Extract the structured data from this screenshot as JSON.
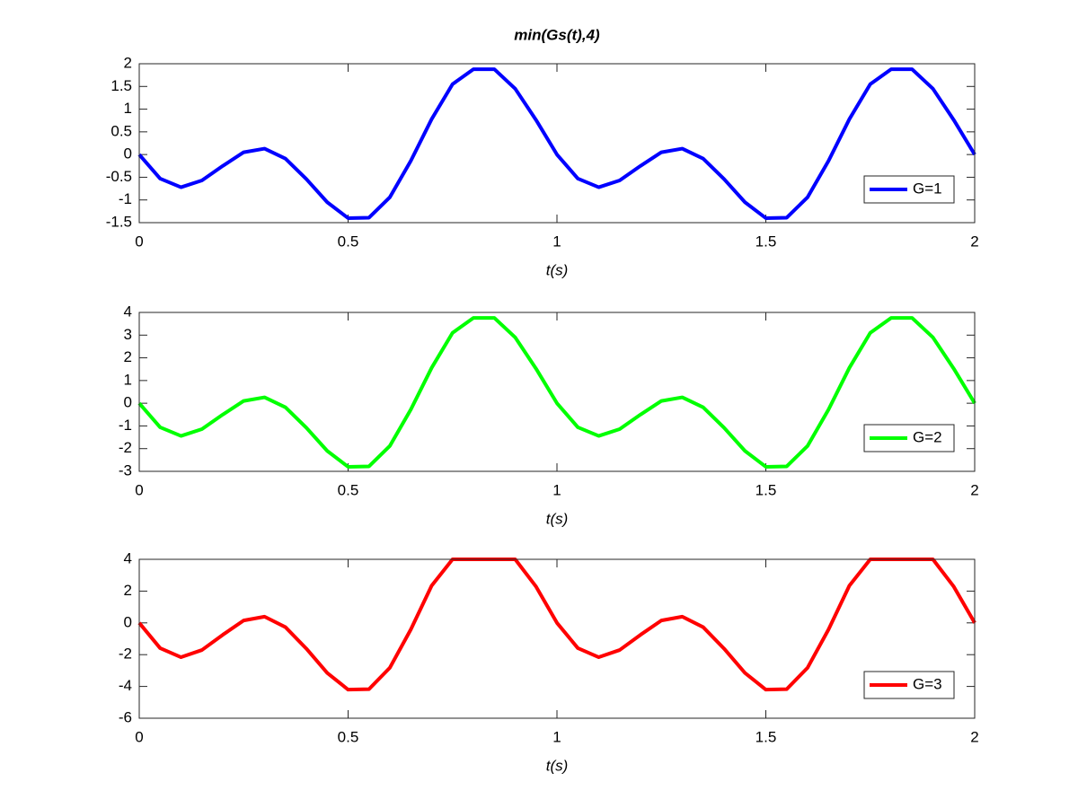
{
  "chart_data": [
    {
      "type": "line",
      "title": "min(Gs(t),4)",
      "xlabel": "t(s)",
      "x": [
        0,
        0.05,
        0.1,
        0.15,
        0.2,
        0.25,
        0.3,
        0.35,
        0.4,
        0.45,
        0.5,
        0.55,
        0.6,
        0.65,
        0.7,
        0.75,
        0.8,
        0.85,
        0.9,
        0.95,
        1,
        1.05,
        1.1,
        1.15,
        1.2,
        1.25,
        1.3,
        1.35,
        1.4,
        1.45,
        1.5,
        1.55,
        1.6,
        1.65,
        1.7,
        1.75,
        1.8,
        1.85,
        1.9,
        1.95,
        2
      ],
      "series": [
        {
          "name": "G=1",
          "color": "#0000ff",
          "values": [
            0,
            -0.53,
            -0.72,
            -0.57,
            -0.25,
            0.05,
            0.13,
            -0.09,
            -0.54,
            -1.05,
            -1.4,
            -1.39,
            -0.94,
            -0.14,
            0.78,
            1.55,
            1.88,
            1.88,
            1.45,
            0.76,
            0,
            -0.53,
            -0.72,
            -0.57,
            -0.25,
            0.05,
            0.13,
            -0.09,
            -0.54,
            -1.05,
            -1.4,
            -1.39,
            -0.94,
            -0.14,
            0.78,
            1.55,
            1.88,
            1.88,
            1.45,
            0.76,
            0
          ]
        }
      ],
      "xlim": [
        0,
        2
      ],
      "xticks": [
        0,
        0.5,
        1,
        1.5,
        2
      ],
      "ylim": [
        -1.5,
        2
      ],
      "yticks": [
        -1.5,
        -1,
        -0.5,
        0,
        0.5,
        1,
        1.5,
        2
      ],
      "legend": "southeast"
    },
    {
      "type": "line",
      "xlabel": "t(s)",
      "x": [
        0,
        0.05,
        0.1,
        0.15,
        0.2,
        0.25,
        0.3,
        0.35,
        0.4,
        0.45,
        0.5,
        0.55,
        0.6,
        0.65,
        0.7,
        0.75,
        0.8,
        0.85,
        0.9,
        0.95,
        1,
        1.05,
        1.1,
        1.15,
        1.2,
        1.25,
        1.3,
        1.35,
        1.4,
        1.45,
        1.5,
        1.55,
        1.6,
        1.65,
        1.7,
        1.75,
        1.8,
        1.85,
        1.9,
        1.95,
        2
      ],
      "series": [
        {
          "name": "G=2",
          "color": "#00ff00",
          "values": [
            0,
            -1.06,
            -1.44,
            -1.14,
            -0.5,
            0.1,
            0.26,
            -0.18,
            -1.08,
            -2.1,
            -2.8,
            -2.78,
            -1.88,
            -0.28,
            1.56,
            3.1,
            3.76,
            3.76,
            2.9,
            1.52,
            0,
            -1.06,
            -1.44,
            -1.14,
            -0.5,
            0.1,
            0.26,
            -0.18,
            -1.08,
            -2.1,
            -2.8,
            -2.78,
            -1.88,
            -0.28,
            1.56,
            3.1,
            3.76,
            3.76,
            2.9,
            1.52,
            0
          ]
        }
      ],
      "xlim": [
        0,
        2
      ],
      "xticks": [
        0,
        0.5,
        1,
        1.5,
        2
      ],
      "ylim": [
        -3,
        4
      ],
      "yticks": [
        -3,
        -2,
        -1,
        0,
        1,
        2,
        3,
        4
      ],
      "legend": "southeast"
    },
    {
      "type": "line",
      "xlabel": "t(s)",
      "x": [
        0,
        0.05,
        0.1,
        0.15,
        0.2,
        0.25,
        0.3,
        0.35,
        0.4,
        0.45,
        0.5,
        0.55,
        0.6,
        0.65,
        0.7,
        0.75,
        0.8,
        0.85,
        0.9,
        0.95,
        1,
        1.05,
        1.1,
        1.15,
        1.2,
        1.25,
        1.3,
        1.35,
        1.4,
        1.45,
        1.5,
        1.55,
        1.6,
        1.65,
        1.7,
        1.75,
        1.8,
        1.85,
        1.9,
        1.95,
        2
      ],
      "series": [
        {
          "name": "G=3",
          "color": "#ff0000",
          "values": [
            0,
            -1.59,
            -2.16,
            -1.71,
            -0.75,
            0.15,
            0.39,
            -0.27,
            -1.62,
            -3.15,
            -4.2,
            -4.17,
            -2.82,
            -0.42,
            2.34,
            4,
            4,
            4,
            4,
            2.28,
            0,
            -1.59,
            -2.16,
            -1.71,
            -0.75,
            0.15,
            0.39,
            -0.27,
            -1.62,
            -3.15,
            -4.2,
            -4.17,
            -2.82,
            -0.42,
            2.34,
            4,
            4,
            4,
            4,
            2.28,
            0
          ]
        }
      ],
      "xlim": [
        0,
        2
      ],
      "xticks": [
        0,
        0.5,
        1,
        1.5,
        2
      ],
      "ylim": [
        -6,
        4
      ],
      "yticks": [
        -6,
        -4,
        -2,
        0,
        2,
        4
      ],
      "legend": "southeast"
    }
  ]
}
